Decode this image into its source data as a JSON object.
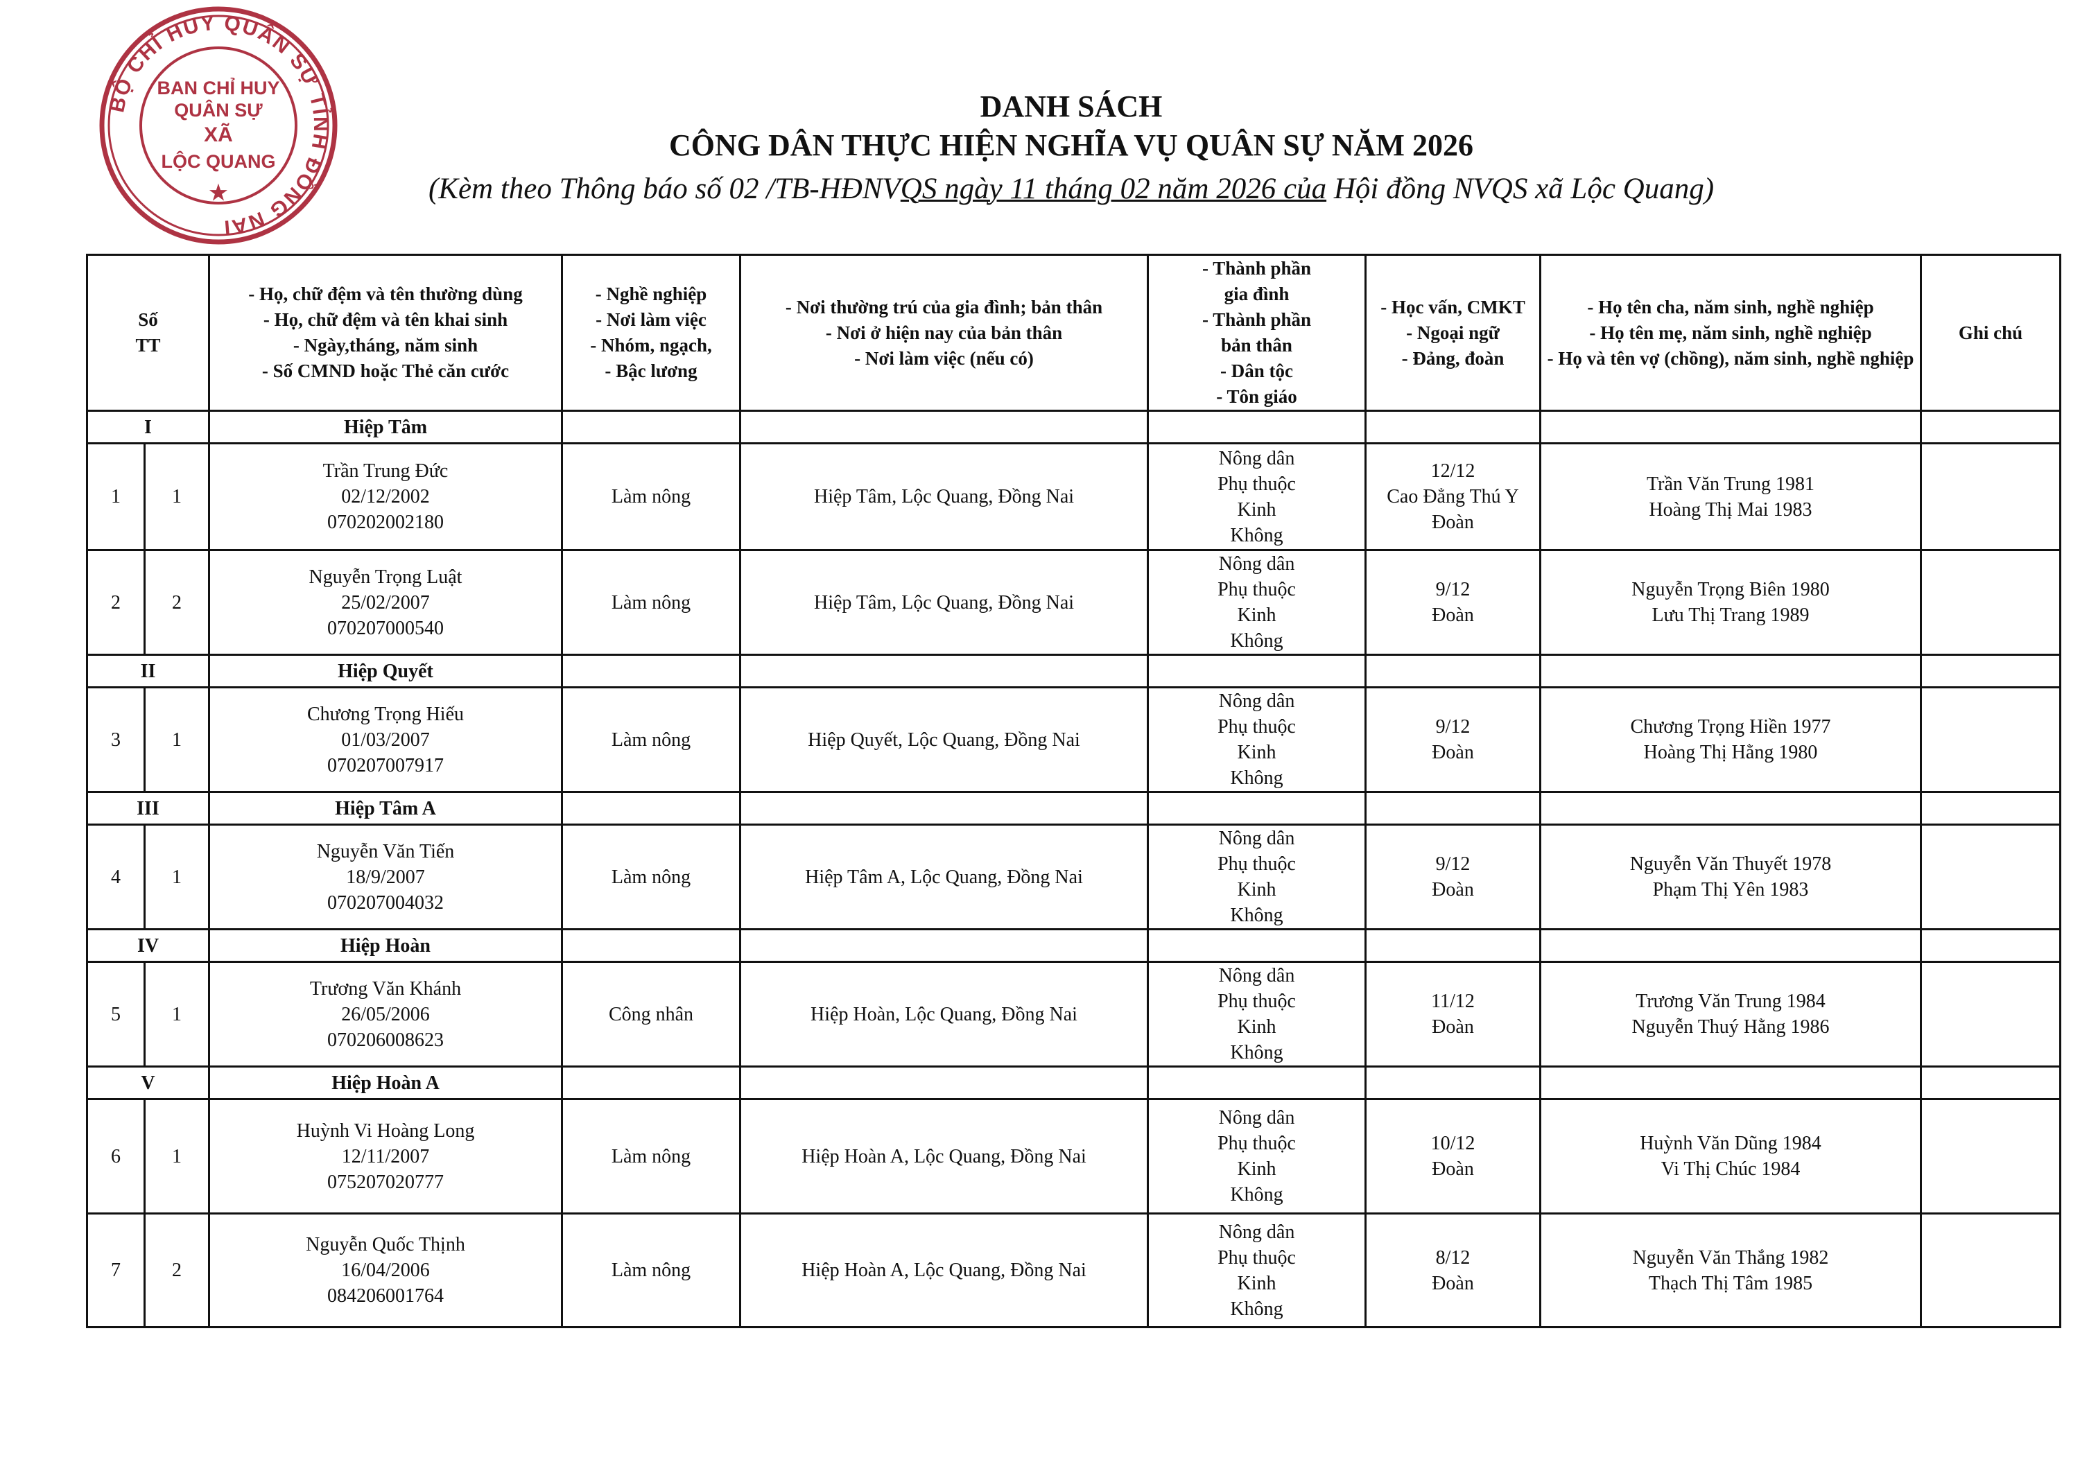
{
  "header": {
    "title": "DANH SÁCH",
    "subtitle": "CÔNG DÂN THỰC HIỆN NGHĨA VỤ QUÂN SỰ NĂM 2026",
    "note_prefix": "(Kèm theo Thông báo số 02 /TB-HĐNV",
    "note_underlined": "QS ngày 11 tháng 02 năm 2026 của",
    "note_suffix": " Hội đồng NVQS xã Lộc Quang)"
  },
  "stamp": {
    "outer_text": "BỘ CHỈ HUY QUÂN SỰ TỈNH ĐỒNG NAI",
    "inner_lines": [
      "BAN CHỈ HUY",
      "QUÂN SỰ",
      "XÃ",
      "LỘC QUANG"
    ],
    "color": "#a3182a"
  },
  "columns": [
    [
      "Số",
      "TT"
    ],
    [
      "- Họ, chữ đệm và tên thường dùng",
      "- Họ, chữ đệm và tên khai sinh",
      "- Ngày,tháng, năm sinh",
      "- Số CMND hoặc Thẻ căn cước"
    ],
    [
      "- Nghề nghiệp",
      "- Nơi làm việc",
      "- Nhóm, ngạch,",
      "- Bậc lương"
    ],
    [
      "- Nơi thường trú của gia đình; bản thân",
      "- Nơi ở hiện nay của bản thân",
      "- Nơi làm việc (nếu có)"
    ],
    [
      "- Thành phần",
      "gia đình",
      "- Thành phần",
      "bản thân",
      "- Dân tộc",
      "- Tôn giáo"
    ],
    [
      "- Học vấn, CMKT",
      "- Ngoại ngữ",
      "- Đảng, đoàn"
    ],
    [
      "- Họ tên cha, năm sinh, nghề nghiệp",
      "- Họ tên mẹ, năm sinh, nghề nghiệp",
      "- Họ và tên vợ (chồng), năm sinh, nghề nghiệp"
    ],
    [
      "Ghi chú"
    ]
  ],
  "sections": [
    {
      "roman": "I",
      "name": "Hiệp Tâm",
      "people": [
        {
          "stt": "1",
          "sub": "1",
          "info": [
            "Trần Trung Đức",
            "02/12/2002",
            "070202002180"
          ],
          "job": "Làm nông",
          "address": "Hiệp Tâm, Lộc Quang, Đồng Nai",
          "background": [
            "Nông dân",
            "Phụ thuộc",
            "Kinh",
            "Không"
          ],
          "education": [
            "12/12",
            "Cao Đẳng Thú Y",
            "Đoàn"
          ],
          "family": [
            "Trần Văn Trung 1981",
            "Hoàng Thị Mai 1983"
          ],
          "note": ""
        },
        {
          "stt": "2",
          "sub": "2",
          "info": [
            "Nguyễn Trọng Luật",
            "25/02/2007",
            "070207000540"
          ],
          "job": "Làm nông",
          "address": "Hiệp Tâm, Lộc Quang, Đồng Nai",
          "background": [
            "Nông dân",
            "Phụ thuộc",
            "Kinh",
            "Không"
          ],
          "education": [
            "9/12",
            "Đoàn"
          ],
          "family": [
            "Nguyễn Trọng Biên 1980",
            "Lưu Thị Trang 1989"
          ],
          "note": ""
        }
      ]
    },
    {
      "roman": "II",
      "name": "Hiệp Quyết",
      "people": [
        {
          "stt": "3",
          "sub": "1",
          "info": [
            "Chương Trọng Hiếu",
            "01/03/2007",
            "070207007917"
          ],
          "job": "Làm nông",
          "address": "Hiệp Quyết, Lộc Quang, Đồng Nai",
          "background": [
            "Nông dân",
            "Phụ thuộc",
            "Kinh",
            "Không"
          ],
          "education": [
            "9/12",
            "Đoàn"
          ],
          "family": [
            "Chương Trọng Hiền 1977",
            "Hoàng Thị Hằng 1980"
          ],
          "note": ""
        }
      ]
    },
    {
      "roman": "III",
      "name": "Hiệp Tâm A",
      "people": [
        {
          "stt": "4",
          "sub": "1",
          "info": [
            "Nguyễn Văn Tiến",
            "18/9/2007",
            "070207004032"
          ],
          "job": "Làm nông",
          "address": "Hiệp Tâm A, Lộc Quang, Đồng Nai",
          "background": [
            "Nông dân",
            "Phụ thuộc",
            "Kinh",
            "Không"
          ],
          "education": [
            "9/12",
            "Đoàn"
          ],
          "family": [
            "Nguyễn Văn Thuyết 1978",
            "Phạm Thị Yên 1983"
          ],
          "note": ""
        }
      ]
    },
    {
      "roman": "IV",
      "name": "Hiệp Hoàn",
      "people": [
        {
          "stt": "5",
          "sub": "1",
          "info": [
            "Trương Văn Khánh",
            "26/05/2006",
            "070206008623"
          ],
          "job": "Công nhân",
          "address": "Hiệp Hoàn, Lộc Quang, Đồng Nai",
          "background": [
            "Nông dân",
            "Phụ thuộc",
            "Kinh",
            "Không"
          ],
          "education": [
            "11/12",
            "Đoàn"
          ],
          "family": [
            "Trương Văn Trung 1984",
            "Nguyễn Thuý Hằng 1986"
          ],
          "note": ""
        }
      ]
    },
    {
      "roman": "V",
      "name": "Hiệp Hoàn A",
      "people": [
        {
          "stt": "6",
          "sub": "1",
          "info": [
            "Huỳnh Vi Hoàng Long",
            "12/11/2007",
            "075207020777"
          ],
          "job": "Làm nông",
          "address": "Hiệp Hoàn A, Lộc Quang, Đồng Nai",
          "background": [
            "Nông dân",
            "Phụ thuộc",
            "Kinh",
            "Không"
          ],
          "education": [
            "10/12",
            "Đoàn"
          ],
          "family": [
            "Huỳnh Văn Dũng 1984",
            "Vi Thị Chúc 1984"
          ],
          "note": ""
        },
        {
          "stt": "7",
          "sub": "2",
          "info": [
            "Nguyễn Quốc Thịnh",
            "16/04/2006",
            "084206001764"
          ],
          "job": "Làm nông",
          "address": "Hiệp Hoàn A, Lộc Quang, Đồng Nai",
          "background": [
            "Nông dân",
            "Phụ thuộc",
            "Kinh",
            "Không"
          ],
          "education": [
            "8/12",
            "Đoàn"
          ],
          "family": [
            "Nguyễn Văn Thắng 1982",
            "Thạch Thị Tâm 1985"
          ],
          "note": ""
        }
      ]
    }
  ]
}
